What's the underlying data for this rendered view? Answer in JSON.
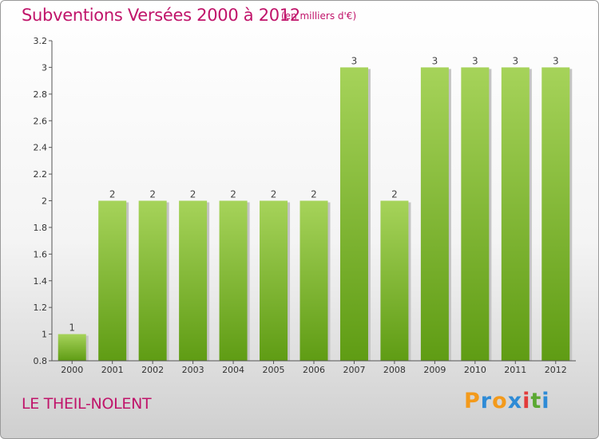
{
  "title": "Subventions Versées 2000 à 2012",
  "subtitle": "(en milliers d'€)",
  "commune": "LE THEIL-NOLENT",
  "logo": {
    "text": "Proxiti",
    "letters": [
      "P",
      "r",
      "o",
      "x",
      "i",
      "t",
      "i"
    ],
    "colors": [
      "#f39a1b",
      "#2e8bd6",
      "#f39a1b",
      "#2e8bd6",
      "#e23b3b",
      "#5aa832",
      "#2e8bd6"
    ]
  },
  "colors": {
    "title": "#c0146a",
    "bar_top": "#a6d35a",
    "bar_bottom": "#5f9c14",
    "axis": "#555555"
  },
  "chart_data": {
    "type": "bar",
    "categories": [
      "2000",
      "2001",
      "2002",
      "2003",
      "2004",
      "2005",
      "2006",
      "2007",
      "2008",
      "2009",
      "2010",
      "2011",
      "2012"
    ],
    "values": [
      1,
      2,
      2,
      2,
      2,
      2,
      2,
      3,
      2,
      3,
      3,
      3,
      3
    ],
    "data_labels": [
      "1",
      "2",
      "2",
      "2",
      "2",
      "2",
      "2",
      "3",
      "2",
      "3",
      "3",
      "3",
      "3"
    ],
    "yticks": [
      "0.8",
      "1",
      "1.2",
      "1.4",
      "1.6",
      "1.8",
      "2",
      "2.2",
      "2.4",
      "2.6",
      "2.8",
      "3",
      "3.2"
    ],
    "ylim": [
      0.8,
      3.2
    ],
    "title": "Subventions Versées 2000 à 2012",
    "xlabel": "",
    "ylabel": "",
    "grid": false,
    "legend": "none"
  }
}
